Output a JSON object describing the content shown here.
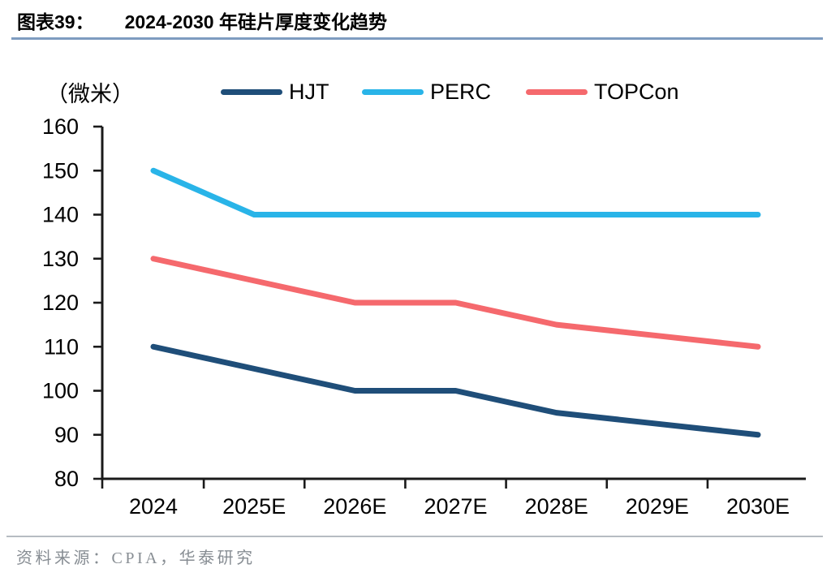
{
  "header": {
    "figure_label": "图表39：",
    "figure_title": "2024-2030 年硅片厚度变化趋势"
  },
  "chart_data": {
    "type": "line",
    "title": "2024-2030 年硅片厚度变化趋势",
    "unit_label": "（微米）",
    "xlabel": "",
    "ylabel": "（微米）",
    "categories": [
      "2024",
      "2025E",
      "2026E",
      "2027E",
      "2028E",
      "2029E",
      "2030E"
    ],
    "series": [
      {
        "name": "HJT",
        "color": "#1f4e79",
        "values": [
          110,
          105,
          100,
          100,
          95,
          92.5,
          90
        ]
      },
      {
        "name": "PERC",
        "color": "#29b4e8",
        "values": [
          150,
          140,
          140,
          140,
          140,
          140,
          140
        ]
      },
      {
        "name": "TOPCon",
        "color": "#f5696d",
        "values": [
          130,
          125,
          120,
          120,
          115,
          112.5,
          110
        ]
      }
    ],
    "ylim": [
      80,
      160
    ],
    "y_ticks": [
      160,
      150,
      140,
      130,
      120,
      110,
      100,
      90,
      80
    ],
    "grid": false,
    "legend_position": "top"
  },
  "footer": {
    "source": "资料来源：CPIA，华泰研究"
  },
  "colors": {
    "title_underline": "#7e9cc0",
    "footer_divider": "#b6bcc2",
    "axis": "#1a1a1a",
    "source_text": "#878d93"
  }
}
